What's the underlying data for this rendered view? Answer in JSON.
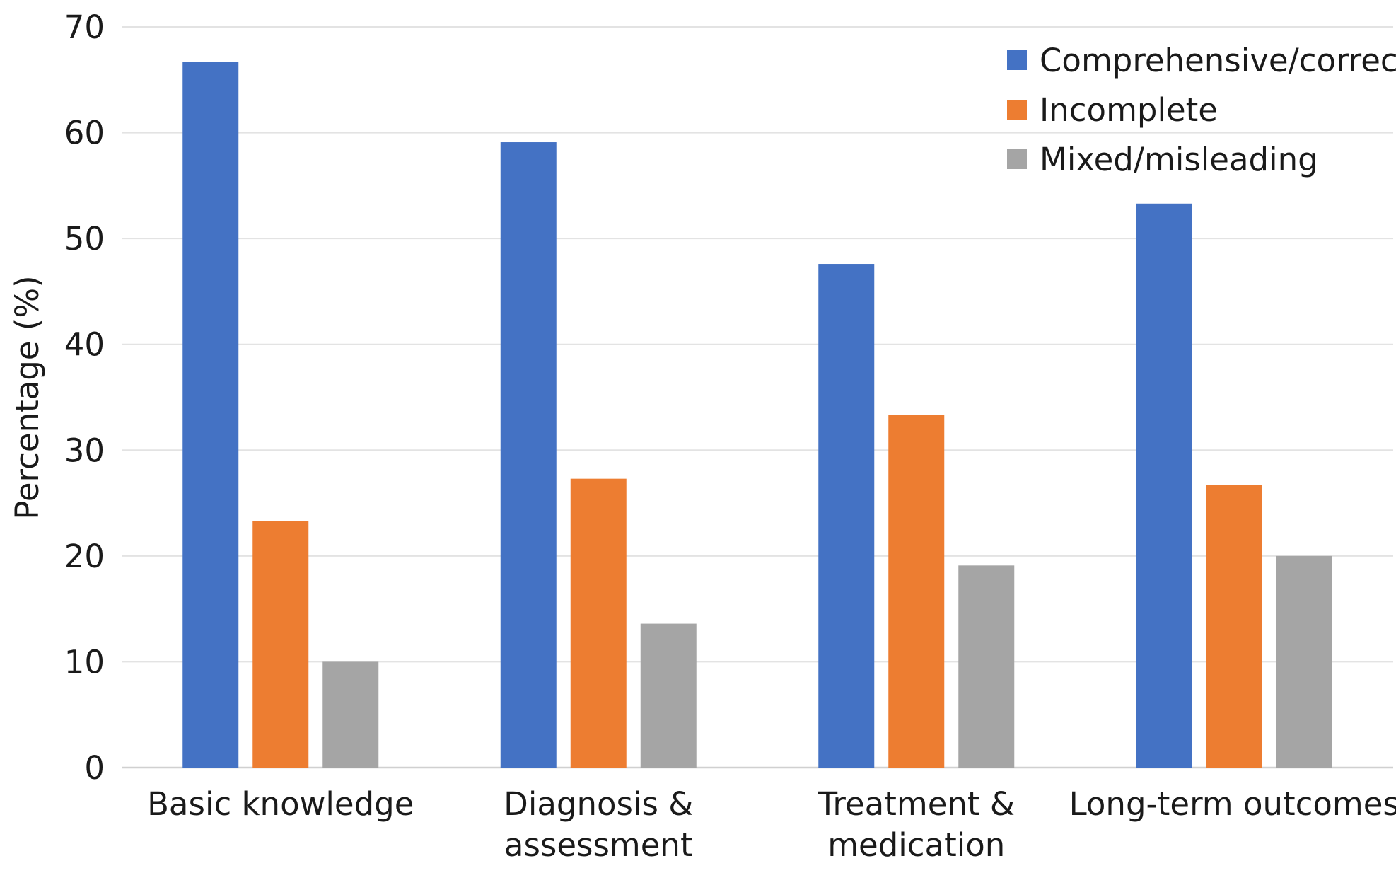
{
  "chart_data": {
    "type": "bar",
    "title": "",
    "xlabel": "",
    "ylabel": "Percentage (%)",
    "ylim": [
      0,
      70
    ],
    "yticks": [
      0,
      10,
      20,
      30,
      40,
      50,
      60,
      70
    ],
    "grid": true,
    "legend_position": "top-right",
    "categories": [
      [
        "Basic knowledge"
      ],
      [
        "Diagnosis &",
        "assessment"
      ],
      [
        "Treatment &",
        "medication"
      ],
      [
        "Long-term outcomes"
      ]
    ],
    "series": [
      {
        "name": "Comprehensive/correct",
        "color": "#4472C4",
        "values": [
          66.7,
          59.1,
          47.6,
          53.3
        ]
      },
      {
        "name": "Incomplete",
        "color": "#ED7D31",
        "values": [
          23.3,
          27.3,
          33.3,
          26.7
        ]
      },
      {
        "name": "Mixed/misleading",
        "color": "#A5A5A5",
        "values": [
          10.0,
          13.6,
          19.1,
          20.0
        ]
      }
    ]
  }
}
